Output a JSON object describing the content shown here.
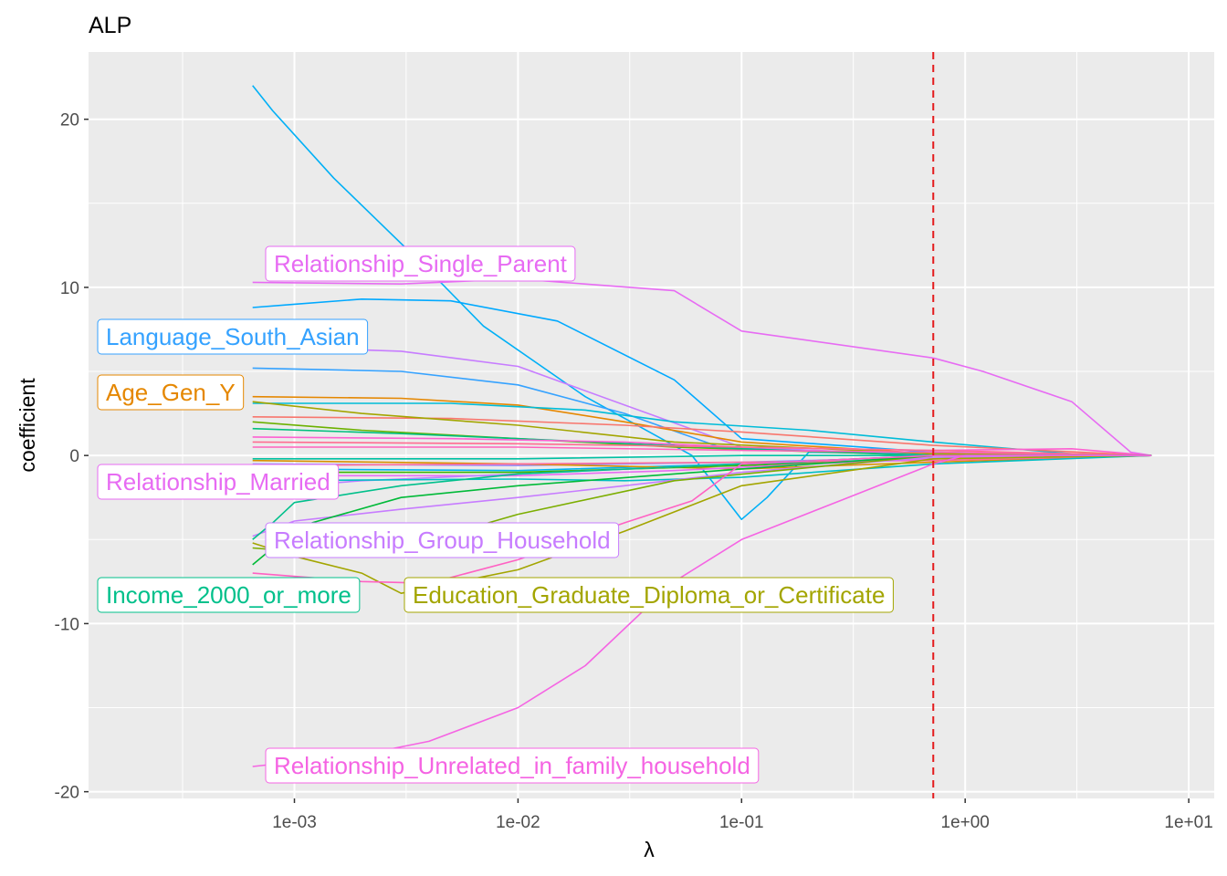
{
  "chart_data": {
    "type": "line",
    "title": "ALP",
    "xlabel": "λ",
    "ylabel": "coefficient",
    "x_scale": "log10",
    "xlim": [
      0.00012,
      13
    ],
    "ylim": [
      -20.4,
      24
    ],
    "x_ticks": [
      0.001,
      0.01,
      0.1,
      1,
      10
    ],
    "x_tick_labels": [
      "1e-03",
      "1e-02",
      "1e-01",
      "1e+00",
      "1e+01"
    ],
    "y_ticks": [
      -20,
      -10,
      0,
      10,
      20
    ],
    "y_tick_labels": [
      "-20",
      "-10",
      "0",
      "10",
      "20"
    ],
    "grid": true,
    "legend": "none",
    "reference_line": {
      "x": 0.72,
      "color": "#e41a1c",
      "style": "dashed"
    },
    "series": [
      {
        "color": "#00b0f6",
        "points": [
          [
            0.00065,
            22
          ],
          [
            0.0008,
            20.5
          ],
          [
            0.0015,
            16.5
          ],
          [
            0.004,
            11
          ],
          [
            0.007,
            7.7
          ],
          [
            0.02,
            3.5
          ],
          [
            0.06,
            0
          ],
          [
            0.1,
            -3.8
          ],
          [
            0.13,
            -2.5
          ],
          [
            0.2,
            0.2
          ],
          [
            0.72,
            0.1
          ],
          [
            6.8,
            0
          ]
        ]
      },
      {
        "color": "#e76bf3",
        "label": "Relationship_Single_Parent",
        "points": [
          [
            0.00065,
            10.3
          ],
          [
            0.003,
            10.2
          ],
          [
            0.01,
            10.5
          ],
          [
            0.05,
            9.8
          ],
          [
            0.1,
            7.4
          ],
          [
            0.72,
            5.8
          ],
          [
            1.2,
            5
          ],
          [
            3,
            3.2
          ],
          [
            5.5,
            0.2
          ],
          [
            6.8,
            0
          ]
        ]
      },
      {
        "color": "#00a9ff",
        "points": [
          [
            0.00065,
            8.8
          ],
          [
            0.001,
            9
          ],
          [
            0.002,
            9.3
          ],
          [
            0.005,
            9.2
          ],
          [
            0.015,
            8
          ],
          [
            0.05,
            4.5
          ],
          [
            0.1,
            1
          ],
          [
            0.72,
            0.2
          ],
          [
            6.8,
            0
          ]
        ]
      },
      {
        "color": "#35a2ff",
        "label": "Language_South_Asian",
        "points": [
          [
            0.00065,
            5.2
          ],
          [
            0.003,
            5
          ],
          [
            0.01,
            4.2
          ],
          [
            0.03,
            2.5
          ],
          [
            0.08,
            0.5
          ],
          [
            0.72,
            0
          ],
          [
            6.8,
            0
          ]
        ]
      },
      {
        "color": "#c77cff",
        "points": [
          [
            0.00065,
            6.5
          ],
          [
            0.003,
            6.2
          ],
          [
            0.01,
            5.3
          ],
          [
            0.03,
            3
          ],
          [
            0.1,
            0.5
          ],
          [
            0.72,
            0
          ],
          [
            6.8,
            0
          ]
        ]
      },
      {
        "color": "#e58700",
        "label": "Age_Gen_Y",
        "points": [
          [
            0.00065,
            3.5
          ],
          [
            0.003,
            3.4
          ],
          [
            0.01,
            3
          ],
          [
            0.03,
            2
          ],
          [
            0.1,
            0.8
          ],
          [
            0.72,
            0.1
          ],
          [
            6.8,
            0
          ]
        ]
      },
      {
        "color": "#00bcd8",
        "points": [
          [
            0.00065,
            3.1
          ],
          [
            0.005,
            3.1
          ],
          [
            0.02,
            2.7
          ],
          [
            0.05,
            2
          ],
          [
            0.2,
            1.5
          ],
          [
            0.72,
            0.8
          ],
          [
            3,
            0.1
          ],
          [
            6.8,
            0
          ]
        ]
      },
      {
        "color": "#f8766d",
        "points": [
          [
            0.00065,
            2.3
          ],
          [
            0.005,
            2.2
          ],
          [
            0.03,
            1.8
          ],
          [
            0.1,
            1.4
          ],
          [
            0.72,
            0.6
          ],
          [
            6.8,
            0
          ]
        ]
      },
      {
        "color": "#a3a500",
        "points": [
          [
            0.00065,
            3.2
          ],
          [
            0.002,
            2.5
          ],
          [
            0.01,
            1.8
          ],
          [
            0.05,
            0.8
          ],
          [
            0.72,
            0.1
          ],
          [
            6.8,
            0
          ]
        ]
      },
      {
        "color": "#6bb100",
        "points": [
          [
            0.00065,
            2
          ],
          [
            0.002,
            1.5
          ],
          [
            0.01,
            1
          ],
          [
            0.05,
            0.5
          ],
          [
            0.72,
            0
          ],
          [
            6.8,
            0
          ]
        ]
      },
      {
        "color": "#00bf7d",
        "points": [
          [
            0.00065,
            1.6
          ],
          [
            0.003,
            1.3
          ],
          [
            0.01,
            1
          ],
          [
            0.1,
            0.4
          ],
          [
            0.72,
            0
          ],
          [
            6.8,
            0
          ]
        ]
      },
      {
        "color": "#fd61d1",
        "points": [
          [
            0.00065,
            1.1
          ],
          [
            0.005,
            1
          ],
          [
            0.03,
            0.8
          ],
          [
            0.1,
            0.5
          ],
          [
            0.72,
            0.3
          ],
          [
            3,
            0.4
          ],
          [
            6.8,
            0
          ]
        ]
      },
      {
        "color": "#ff62bc",
        "points": [
          [
            0.00065,
            0.5
          ],
          [
            0.01,
            0.5
          ],
          [
            0.1,
            0.3
          ],
          [
            0.72,
            0.2
          ],
          [
            6.8,
            0
          ]
        ]
      },
      {
        "color": "#ff6c91",
        "points": [
          [
            0.00065,
            0.8
          ],
          [
            0.01,
            0.7
          ],
          [
            0.1,
            0.5
          ],
          [
            0.72,
            0.3
          ],
          [
            6.8,
            0
          ]
        ]
      },
      {
        "color": "#00c1a3",
        "points": [
          [
            0.00065,
            -0.2
          ],
          [
            0.01,
            -0.2
          ],
          [
            0.1,
            0
          ],
          [
            6.8,
            0
          ]
        ]
      },
      {
        "color": "#9590ff",
        "points": [
          [
            0.00065,
            -0.5
          ],
          [
            0.01,
            -0.6
          ],
          [
            0.1,
            -0.4
          ],
          [
            0.72,
            -0.1
          ],
          [
            6.8,
            0
          ]
        ]
      },
      {
        "color": "#00b4ef",
        "points": [
          [
            0.00065,
            -0.8
          ],
          [
            0.01,
            -0.9
          ],
          [
            0.1,
            -0.5
          ],
          [
            0.72,
            -0.2
          ],
          [
            6.8,
            0
          ]
        ]
      },
      {
        "color": "#d89000",
        "points": [
          [
            0.00065,
            -0.3
          ],
          [
            0.01,
            -0.5
          ],
          [
            0.1,
            -0.8
          ],
          [
            0.72,
            -0.4
          ],
          [
            6.8,
            0
          ]
        ]
      },
      {
        "color": "#39b600",
        "points": [
          [
            0.00065,
            -1
          ],
          [
            0.01,
            -1
          ],
          [
            0.1,
            -0.6
          ],
          [
            0.72,
            -0.2
          ],
          [
            6.8,
            0
          ]
        ]
      },
      {
        "color": "#ff6a98",
        "points": [
          [
            0.00065,
            -0.6
          ],
          [
            0.01,
            -0.5
          ],
          [
            0.1,
            -0.4
          ],
          [
            0.72,
            -0.3
          ],
          [
            6.8,
            0
          ]
        ]
      },
      {
        "color": "#e76bf3",
        "label": "Relationship_Married",
        "points": [
          [
            0.00065,
            -1.2
          ],
          [
            0.01,
            -1.2
          ],
          [
            0.05,
            -0.9
          ],
          [
            0.2,
            -0.5
          ],
          [
            0.72,
            -0.2
          ],
          [
            6.8,
            0
          ]
        ]
      },
      {
        "color": "#b983ff",
        "points": [
          [
            0.00065,
            -2
          ],
          [
            0.002,
            -1.5
          ],
          [
            0.01,
            -1.1
          ],
          [
            0.1,
            -0.5
          ],
          [
            0.72,
            0
          ],
          [
            6.8,
            0
          ]
        ]
      },
      {
        "color": "#00bfc4",
        "points": [
          [
            0.00065,
            -1.5
          ],
          [
            0.01,
            -1.4
          ],
          [
            0.03,
            -1.5
          ],
          [
            0.1,
            -1.3
          ],
          [
            0.72,
            -0.5
          ],
          [
            6.8,
            0
          ]
        ]
      },
      {
        "color": "#c77cff",
        "label": "Relationship_Group_Household",
        "points": [
          [
            0.00065,
            -4.8
          ],
          [
            0.001,
            -3.9
          ],
          [
            0.003,
            -3.2
          ],
          [
            0.01,
            -2.5
          ],
          [
            0.03,
            -1.8
          ],
          [
            0.1,
            -1
          ],
          [
            0.72,
            -0.1
          ],
          [
            6.8,
            0
          ]
        ]
      },
      {
        "color": "#00c08b",
        "label": "Income_2000_or_more",
        "points": [
          [
            0.00065,
            -5
          ],
          [
            0.0008,
            -4
          ],
          [
            0.001,
            -2.8
          ],
          [
            0.003,
            -1.8
          ],
          [
            0.01,
            -1.1
          ],
          [
            0.1,
            -0.5
          ],
          [
            0.72,
            0
          ],
          [
            6.8,
            0
          ]
        ]
      },
      {
        "color": "#a3a500",
        "label": "Education_Graduate_Diploma_or_Certificate",
        "points": [
          [
            0.00065,
            -5.2
          ],
          [
            0.001,
            -6
          ],
          [
            0.002,
            -7
          ],
          [
            0.003,
            -8.2
          ],
          [
            0.01,
            -6.8
          ],
          [
            0.03,
            -4.5
          ],
          [
            0.1,
            -1.8
          ],
          [
            0.72,
            -0.2
          ],
          [
            6.8,
            0
          ]
        ]
      },
      {
        "color": "#7cae00",
        "points": [
          [
            0.00065,
            -5.5
          ],
          [
            0.001,
            -5.7
          ],
          [
            0.003,
            -5.5
          ],
          [
            0.01,
            -3.5
          ],
          [
            0.05,
            -1.5
          ],
          [
            0.72,
            0
          ],
          [
            6.8,
            0
          ]
        ]
      },
      {
        "color": "#00ba38",
        "points": [
          [
            0.00065,
            -6.5
          ],
          [
            0.0008,
            -5.5
          ],
          [
            0.0012,
            -4
          ],
          [
            0.003,
            -2.5
          ],
          [
            0.01,
            -1.8
          ],
          [
            0.1,
            -0.8
          ],
          [
            0.72,
            0
          ],
          [
            6.8,
            0
          ]
        ]
      },
      {
        "color": "#ff61c3",
        "points": [
          [
            0.00065,
            -7
          ],
          [
            0.002,
            -7.5
          ],
          [
            0.004,
            -7.6
          ],
          [
            0.01,
            -6.2
          ],
          [
            0.03,
            -4
          ],
          [
            0.06,
            -2.7
          ],
          [
            0.1,
            -0.5
          ],
          [
            0.72,
            0
          ],
          [
            6.8,
            0
          ]
        ]
      },
      {
        "color": "#f564e3",
        "label": "Relationship_Unrelated_in_family_household",
        "points": [
          [
            0.00065,
            -18.5
          ],
          [
            0.002,
            -17.8
          ],
          [
            0.004,
            -17
          ],
          [
            0.01,
            -15
          ],
          [
            0.02,
            -12.5
          ],
          [
            0.05,
            -7.5
          ],
          [
            0.1,
            -5
          ],
          [
            0.3,
            -2.5
          ],
          [
            0.72,
            -0.5
          ],
          [
            1,
            0
          ],
          [
            6.8,
            0
          ]
        ]
      }
    ]
  }
}
